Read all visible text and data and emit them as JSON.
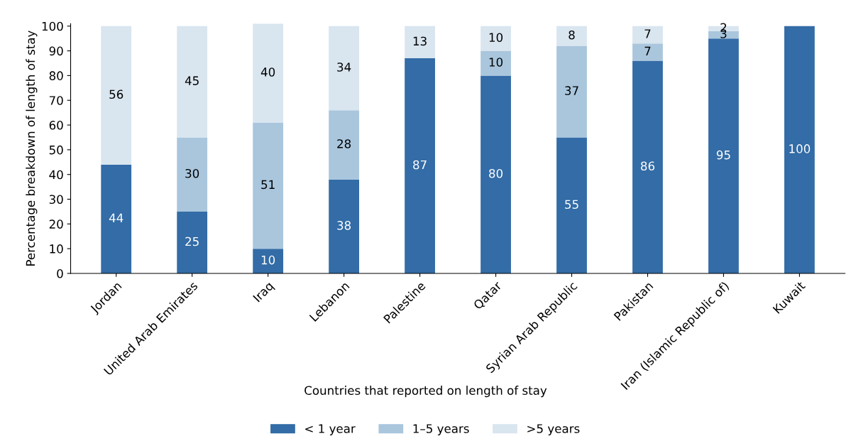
{
  "chart_data": {
    "type": "bar",
    "stacked": true,
    "xlabel": "Countries that reported on length of stay",
    "ylabel": "Percentage breakdown of length of stay",
    "categories": [
      "Jordan",
      "United Arab Emirates",
      "Iraq",
      "Lebanon",
      "Palestine",
      "Qatar",
      "Syrian Arab Republic",
      "Pakistan",
      "Iran (Islamic Republic of)",
      "Kuwait"
    ],
    "series": [
      {
        "name": "< 1 year",
        "color": "#336ca6",
        "values": [
          44,
          25,
          10,
          38,
          87,
          80,
          55,
          86,
          95,
          100
        ],
        "value_labels": [
          "44",
          "25",
          "10",
          "38",
          "87",
          "80",
          "55",
          "86",
          "95",
          "100"
        ]
      },
      {
        "name": "1–5 years",
        "color": "#a9c6dd",
        "values": [
          null,
          30,
          51,
          28,
          null,
          10,
          37,
          7,
          3,
          null
        ],
        "value_labels": [
          null,
          "30",
          "51",
          "28",
          null,
          "10",
          "37",
          "7",
          "3",
          null
        ]
      },
      {
        "name": ">5 years",
        "color": "#d9e5ef",
        "values": [
          56,
          45,
          40,
          34,
          13,
          10,
          8,
          7,
          2,
          null
        ],
        "value_labels": [
          "56",
          "45",
          "40",
          "34",
          "13",
          "10",
          "8",
          "7",
          "2",
          null
        ]
      }
    ],
    "ylim": [
      0,
      101
    ],
    "yticks": [
      0,
      10,
      20,
      30,
      40,
      50,
      60,
      70,
      80,
      90,
      100
    ],
    "grid": false,
    "legend": "bottom"
  }
}
